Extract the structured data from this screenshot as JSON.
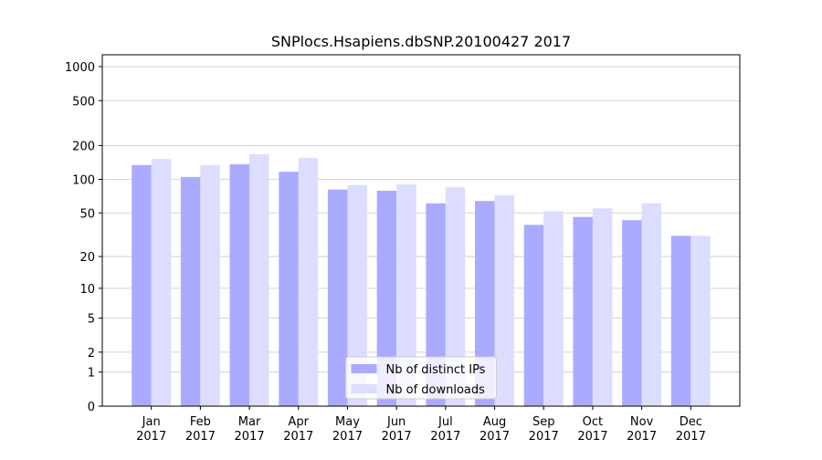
{
  "chart_data": {
    "type": "bar",
    "title": "SNPlocs.Hsapiens.dbSNP.20100427 2017",
    "categories": [
      [
        "Jan",
        "2017"
      ],
      [
        "Feb",
        "2017"
      ],
      [
        "Mar",
        "2017"
      ],
      [
        "Apr",
        "2017"
      ],
      [
        "May",
        "2017"
      ],
      [
        "Jun",
        "2017"
      ],
      [
        "Jul",
        "2017"
      ],
      [
        "Aug",
        "2017"
      ],
      [
        "Sep",
        "2017"
      ],
      [
        "Oct",
        "2017"
      ],
      [
        "Nov",
        "2017"
      ],
      [
        "Dec",
        "2017"
      ]
    ],
    "series": [
      {
        "name": "Nb of distinct IPs",
        "color": "#aaaaff",
        "values": [
          134,
          105,
          136,
          117,
          81,
          79,
          61,
          64,
          39,
          46,
          43,
          31
        ]
      },
      {
        "name": "Nb of downloads",
        "color": "#ddddff",
        "values": [
          152,
          134,
          167,
          155,
          89,
          90,
          85,
          72,
          52,
          55,
          61,
          31
        ]
      }
    ],
    "yscale": "log1p",
    "ylim": [
      0,
      1273
    ],
    "yticks": [
      0,
      1,
      2,
      5,
      10,
      20,
      50,
      100,
      200,
      500,
      1000
    ],
    "grid": true,
    "legend": "lower center"
  }
}
